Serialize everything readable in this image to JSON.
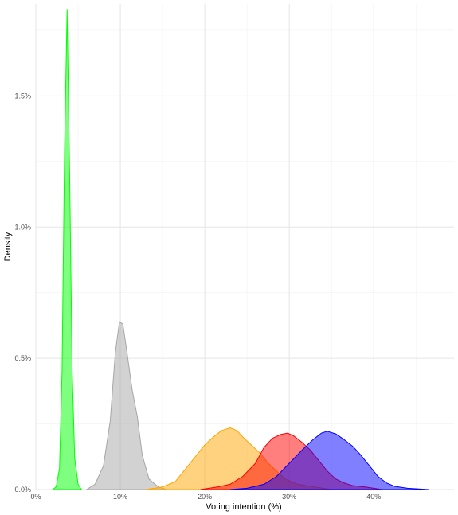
{
  "chart_data": {
    "type": "area",
    "title": "",
    "xlabel": "Voting intention (%)",
    "ylabel": "Density",
    "xlim": [
      0,
      49.5
    ],
    "ylim": [
      0,
      1.85
    ],
    "x_ticks": [
      0,
      10,
      20,
      30,
      40
    ],
    "x_tick_labels": [
      "0%",
      "10%",
      "20%",
      "30%",
      "40%"
    ],
    "y_ticks": [
      0,
      0.5,
      1.0,
      1.5
    ],
    "y_tick_labels": [
      "0.0%",
      "0.5%",
      "1.0%",
      "1.5%"
    ],
    "grid": true,
    "legend": "none",
    "series": [
      {
        "color": "#00ff00",
        "points": [
          [
            2.0,
            0
          ],
          [
            2.4,
            0.01
          ],
          [
            2.8,
            0.08
          ],
          [
            3.1,
            0.45
          ],
          [
            3.4,
            1.3
          ],
          [
            3.7,
            1.83
          ],
          [
            4.0,
            1.2
          ],
          [
            4.3,
            0.45
          ],
          [
            4.6,
            0.12
          ],
          [
            5.0,
            0.02
          ],
          [
            5.4,
            0
          ]
        ]
      },
      {
        "color": "#a6a6a6",
        "points": [
          [
            6.0,
            0
          ],
          [
            7.0,
            0.02
          ],
          [
            8.0,
            0.09
          ],
          [
            8.8,
            0.26
          ],
          [
            9.4,
            0.52
          ],
          [
            9.9,
            0.64
          ],
          [
            10.3,
            0.63
          ],
          [
            10.8,
            0.52
          ],
          [
            11.4,
            0.38
          ],
          [
            12.0,
            0.28
          ],
          [
            12.6,
            0.13
          ],
          [
            13.4,
            0.04
          ],
          [
            14.5,
            0.01
          ],
          [
            15.5,
            0
          ]
        ]
      },
      {
        "color": "#ffa500",
        "points": [
          [
            13.0,
            0
          ],
          [
            15.0,
            0.01
          ],
          [
            16.5,
            0.03
          ],
          [
            17.5,
            0.07
          ],
          [
            19.0,
            0.13
          ],
          [
            20.0,
            0.17
          ],
          [
            21.0,
            0.2
          ],
          [
            22.0,
            0.225
          ],
          [
            23.0,
            0.235
          ],
          [
            23.8,
            0.225
          ],
          [
            24.5,
            0.2
          ],
          [
            25.5,
            0.17
          ],
          [
            26.5,
            0.14
          ],
          [
            27.5,
            0.1
          ],
          [
            28.5,
            0.07
          ],
          [
            29.5,
            0.04
          ],
          [
            31.0,
            0.02
          ],
          [
            33.0,
            0.01
          ],
          [
            35.0,
            0
          ]
        ]
      },
      {
        "color": "#ff0000",
        "points": [
          [
            19.5,
            0
          ],
          [
            21.5,
            0.01
          ],
          [
            23.0,
            0.02
          ],
          [
            24.5,
            0.05
          ],
          [
            26.0,
            0.1
          ],
          [
            27.0,
            0.16
          ],
          [
            28.0,
            0.195
          ],
          [
            29.0,
            0.21
          ],
          [
            29.8,
            0.215
          ],
          [
            30.5,
            0.205
          ],
          [
            31.5,
            0.18
          ],
          [
            32.5,
            0.15
          ],
          [
            33.5,
            0.11
          ],
          [
            34.5,
            0.07
          ],
          [
            35.5,
            0.04
          ],
          [
            36.5,
            0.025
          ],
          [
            37.5,
            0.015
          ],
          [
            39.0,
            0.01
          ],
          [
            41.0,
            0
          ]
        ]
      },
      {
        "color": "#0000ff",
        "points": [
          [
            23.0,
            0
          ],
          [
            25.0,
            0.005
          ],
          [
            27.0,
            0.02
          ],
          [
            28.5,
            0.05
          ],
          [
            30.0,
            0.1
          ],
          [
            31.5,
            0.15
          ],
          [
            32.8,
            0.19
          ],
          [
            33.8,
            0.215
          ],
          [
            34.5,
            0.222
          ],
          [
            35.5,
            0.212
          ],
          [
            36.5,
            0.19
          ],
          [
            37.5,
            0.165
          ],
          [
            38.5,
            0.13
          ],
          [
            39.5,
            0.09
          ],
          [
            40.5,
            0.05
          ],
          [
            41.5,
            0.025
          ],
          [
            42.5,
            0.012
          ],
          [
            44.0,
            0.005
          ],
          [
            46.5,
            0
          ]
        ]
      }
    ]
  }
}
